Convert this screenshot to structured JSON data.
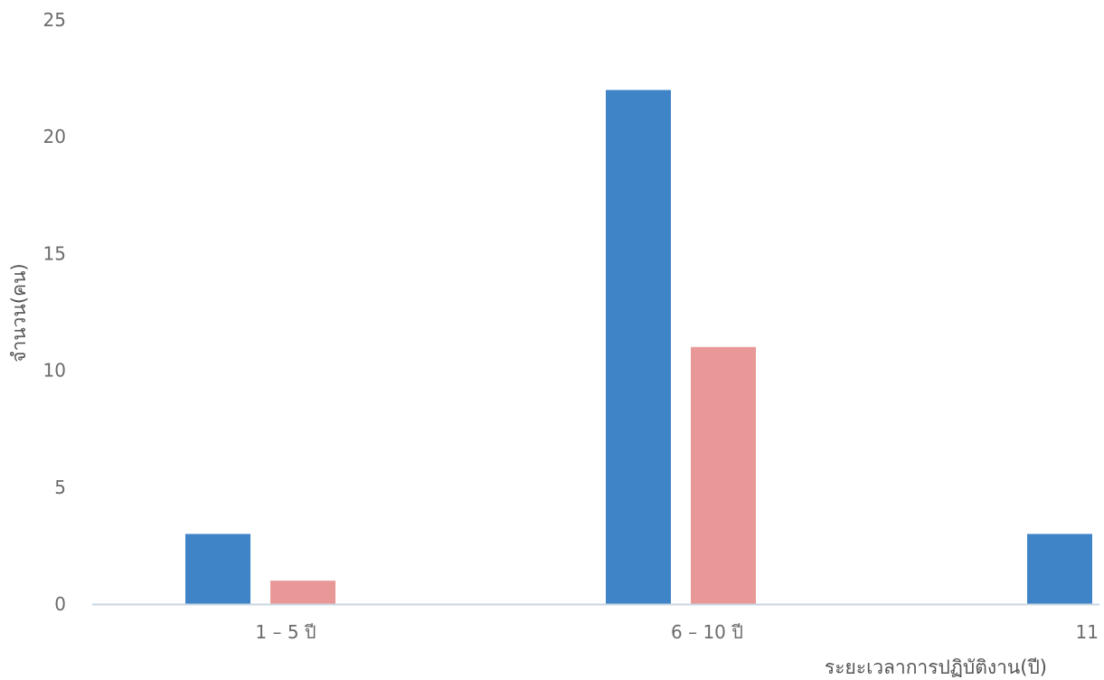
{
  "chart_data": {
    "type": "bar",
    "title": "",
    "xlabel": "ระยะเวลาการปฏิบัติงาน(ปี)",
    "ylabel": "จำนวน(คน)",
    "categories": [
      "1 – 5 ปี",
      "6 – 10 ปี",
      "11"
    ],
    "series": [
      {
        "values": [
          3,
          22,
          3
        ],
        "color": "#3f84c7"
      },
      {
        "values": [
          1,
          11,
          0
        ],
        "color": "#e99898"
      }
    ],
    "ylim": [
      0,
      25
    ],
    "yticks": [
      0,
      5,
      10,
      15,
      20,
      25
    ],
    "grid": false,
    "legend": "none",
    "baseline_color": "#c9d6e2"
  }
}
